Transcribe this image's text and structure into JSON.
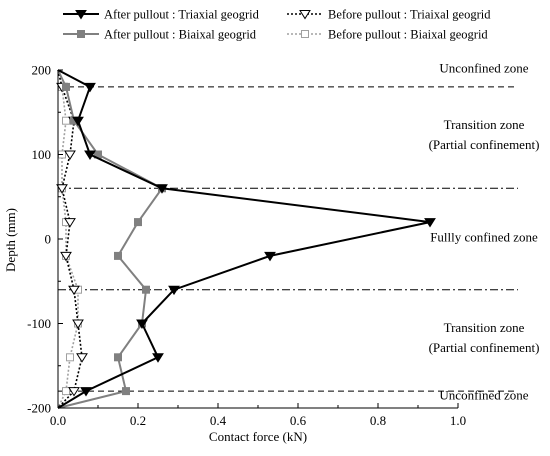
{
  "chart_data": {
    "type": "line",
    "title": "",
    "xlabel": "Contact force (kN)",
    "ylabel": "Depth (mm)",
    "xlim": [
      0,
      1.0
    ],
    "ylim": [
      -200,
      200
    ],
    "xticks": [
      0.0,
      0.2,
      0.4,
      0.6,
      0.8,
      1.0
    ],
    "xtick_labels": [
      "0.0",
      "0.2",
      "0.4",
      "0.6",
      "0.8",
      "1.0"
    ],
    "yticks": [
      -200,
      -100,
      0,
      100,
      200
    ],
    "ytick_labels": [
      "-200",
      "-100",
      "0",
      "100",
      "200"
    ],
    "grid": false,
    "legend_position": "top",
    "series": [
      {
        "name": "After pullout : Triaxial geogrid",
        "color": "#000000",
        "line": "solid",
        "marker": "triangle-down-filled",
        "x": [
          0.0,
          0.08,
          0.05,
          0.08,
          0.26,
          0.93,
          0.53,
          0.29,
          0.21,
          0.25,
          0.07,
          0.0
        ],
        "y": [
          200,
          180,
          140,
          100,
          60,
          20,
          -20,
          -60,
          -100,
          -140,
          -180,
          -200
        ]
      },
      {
        "name": "After pullout : Biaixal geogrid",
        "color": "#808080",
        "line": "solid",
        "marker": "square-filled",
        "x": [
          0.0,
          0.02,
          0.04,
          0.1,
          0.26,
          0.2,
          0.15,
          0.22,
          0.21,
          0.15,
          0.17,
          0.0
        ],
        "y": [
          200,
          180,
          140,
          100,
          60,
          20,
          -20,
          -60,
          -100,
          -140,
          -180,
          -200
        ]
      },
      {
        "name": "Before pullout : Triaixal geogrid",
        "color": "#000000",
        "line": "dotted",
        "marker": "triangle-down-open",
        "x": [
          0.0,
          0.01,
          0.04,
          0.03,
          0.01,
          0.03,
          0.02,
          0.04,
          0.05,
          0.06,
          0.04,
          0.0
        ],
        "y": [
          200,
          180,
          140,
          100,
          60,
          20,
          -20,
          -60,
          -100,
          -140,
          -180,
          -200
        ]
      },
      {
        "name": "Before pullout : Biaixal geogrid",
        "color": "#a0a0a0",
        "line": "dotted",
        "marker": "square-open",
        "x": [
          0.0,
          0.01,
          0.02,
          0.01,
          0.01,
          0.02,
          0.02,
          0.05,
          0.05,
          0.03,
          0.02,
          0.0
        ],
        "y": [
          200,
          180,
          140,
          100,
          60,
          20,
          -20,
          -60,
          -100,
          -140,
          -180,
          -200
        ]
      }
    ],
    "reference_lines": [
      {
        "y": 180,
        "style": "dashed"
      },
      {
        "y": 60,
        "style": "dashdot"
      },
      {
        "y": -60,
        "style": "dashdot"
      },
      {
        "y": -180,
        "style": "dashed"
      }
    ],
    "annotations": [
      {
        "id": "unconfined-top",
        "lines": [
          "Unconfined zone"
        ],
        "y": 197
      },
      {
        "id": "transition-top",
        "lines": [
          "Transition zone",
          "(Partial confinement)"
        ],
        "y": 130
      },
      {
        "id": "fully-confined",
        "lines": [
          "Fullly confined zone"
        ],
        "y": -3
      },
      {
        "id": "transition-bottom",
        "lines": [
          "Transition zone",
          "(Partial confinement)"
        ],
        "y": -110
      },
      {
        "id": "unconfined-bottom",
        "lines": [
          "Unconfined zone"
        ],
        "y": -190
      }
    ]
  }
}
